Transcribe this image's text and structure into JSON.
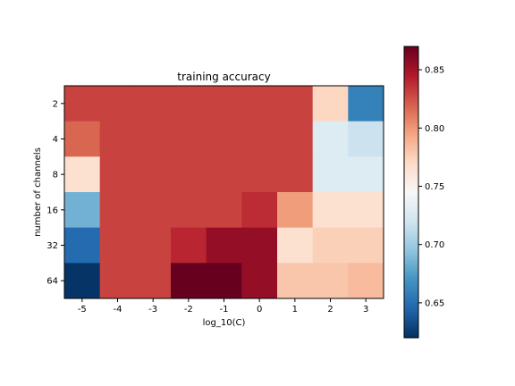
{
  "chart_data": {
    "type": "heatmap",
    "title": "training accuracy",
    "xlabel": "log_10(C)",
    "ylabel": "number of channels",
    "x": [
      "-5",
      "-4",
      "-3",
      "-2",
      "-1",
      "0",
      "1",
      "2",
      "3"
    ],
    "y": [
      "2",
      "4",
      "8",
      "16",
      "32",
      "64"
    ],
    "values": [
      [
        0.83,
        0.83,
        0.83,
        0.83,
        0.83,
        0.83,
        0.83,
        0.772,
        0.66
      ],
      [
        0.818,
        0.83,
        0.83,
        0.83,
        0.83,
        0.83,
        0.83,
        0.728,
        0.718
      ],
      [
        0.765,
        0.83,
        0.83,
        0.83,
        0.83,
        0.83,
        0.83,
        0.728,
        0.728
      ],
      [
        0.685,
        0.83,
        0.83,
        0.83,
        0.83,
        0.838,
        0.798,
        0.765,
        0.765
      ],
      [
        0.648,
        0.83,
        0.83,
        0.84,
        0.855,
        0.855,
        0.765,
        0.775,
        0.775
      ],
      [
        0.622,
        0.83,
        0.83,
        0.87,
        0.87,
        0.855,
        0.78,
        0.78,
        0.785
      ]
    ],
    "colorbar": {
      "colormap": "RdBu_r",
      "range": [
        0.62,
        0.87
      ],
      "ticks": [
        "0.65",
        "0.70",
        "0.75",
        "0.80",
        "0.85"
      ]
    }
  }
}
